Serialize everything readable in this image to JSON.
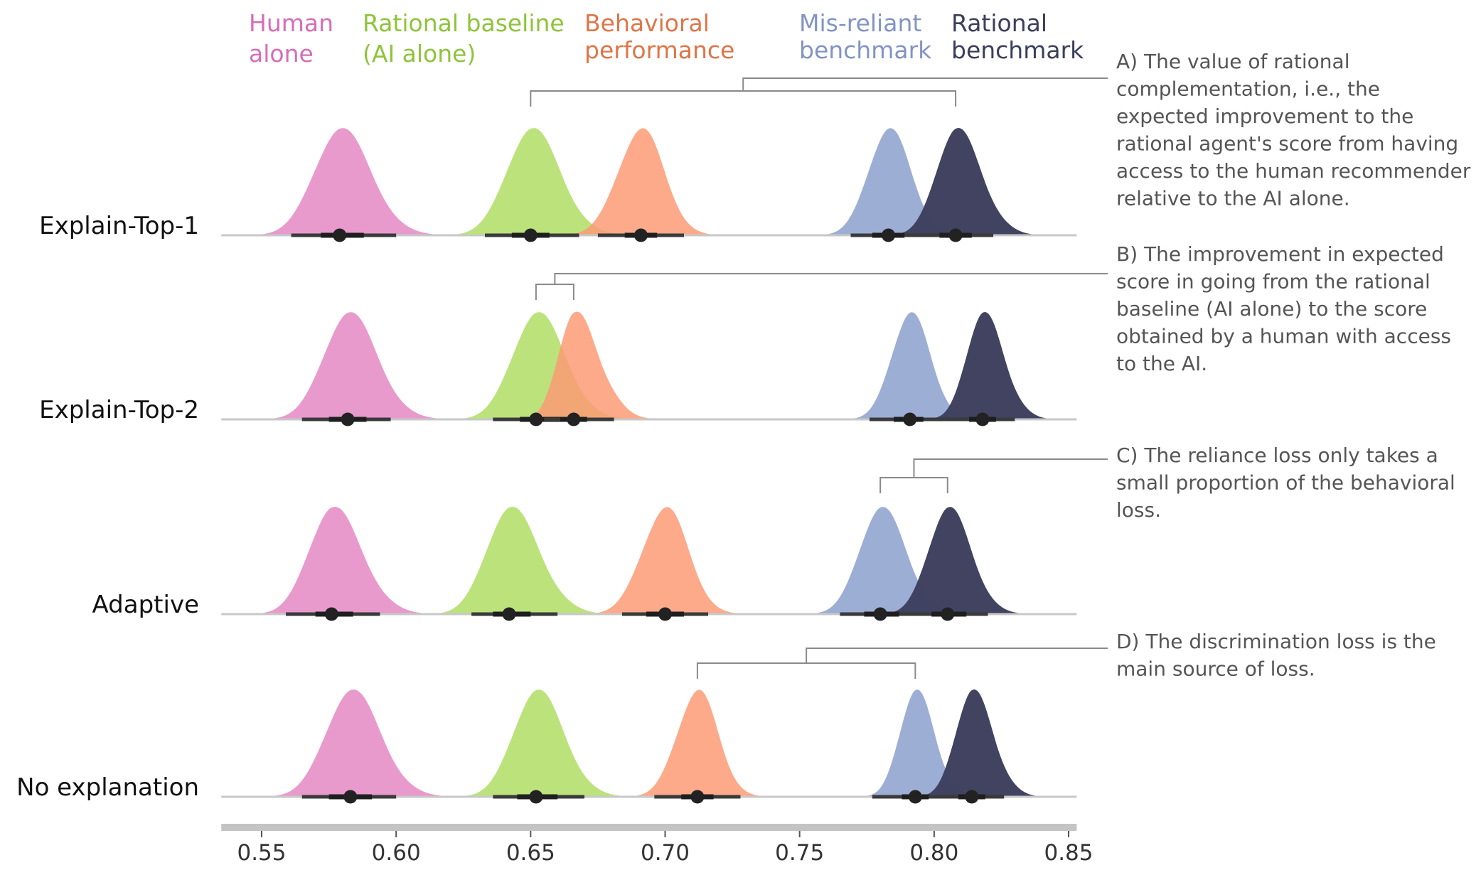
{
  "chart_data": {
    "type": "density",
    "title": "",
    "xlabel": "",
    "ylabel": "",
    "xlim": [
      0.535,
      0.853
    ],
    "x_ticks": [
      "0.55",
      "0.60",
      "0.65",
      "0.70",
      "0.75",
      "0.80",
      "0.85"
    ],
    "x_tick_values": [
      0.55,
      0.6,
      0.65,
      0.7,
      0.75,
      0.8,
      0.85
    ],
    "legend": [
      {
        "key": "human",
        "lines": [
          "Human",
          "alone"
        ],
        "color": "#d66db8"
      },
      {
        "key": "rational_baseline",
        "lines": [
          "Rational baseline",
          "(AI alone)"
        ],
        "color": "#8ec43a"
      },
      {
        "key": "behavioral",
        "lines": [
          "Behavioral",
          "performance"
        ],
        "color": "#e07548"
      },
      {
        "key": "misreliant",
        "lines": [
          "Mis-reliant",
          "benchmark"
        ],
        "color": "#8294c4"
      },
      {
        "key": "rational_benchmark",
        "lines": [
          "Rational",
          "benchmark"
        ],
        "color": "#3b3e5c"
      }
    ],
    "fill_colors": {
      "human": "#e99acd",
      "rational_baseline": "#b8e074",
      "behavioral": "#fc9b76",
      "misreliant": "#9daed5",
      "rational_benchmark": "#3d3f5e"
    },
    "fill_opacity": {
      "human": 1,
      "rational_baseline": 0.95,
      "behavioral": 0.85,
      "misreliant": 1,
      "rational_benchmark": 0.98
    },
    "rows": [
      {
        "label": "Explain-Top-1",
        "dists": [
          {
            "key": "human",
            "peak": 0.579,
            "sd": 0.0095,
            "skew": 1.2,
            "ci50": [
              0.572,
              0.588
            ],
            "ci95": [
              0.561,
              0.6
            ]
          },
          {
            "key": "rational_baseline",
            "peak": 0.65,
            "sd": 0.009,
            "skew": 1.2,
            "ci50": [
              0.643,
              0.657
            ],
            "ci95": [
              0.633,
              0.668
            ]
          },
          {
            "key": "behavioral",
            "peak": 0.691,
            "sd": 0.0085,
            "skew": 1.0,
            "ci50": [
              0.685,
              0.697
            ],
            "ci95": [
              0.675,
              0.707
            ]
          },
          {
            "key": "misreliant",
            "peak": 0.783,
            "sd": 0.0075,
            "skew": 1.1,
            "ci50": [
              0.777,
              0.789
            ],
            "ci95": [
              0.769,
              0.797
            ]
          },
          {
            "key": "rational_benchmark",
            "peak": 0.808,
            "sd": 0.0072,
            "skew": 1.3,
            "ci50": [
              0.802,
              0.814
            ],
            "ci95": [
              0.793,
              0.822
            ]
          }
        ]
      },
      {
        "label": "Explain-Top-2",
        "dists": [
          {
            "key": "human",
            "peak": 0.582,
            "sd": 0.009,
            "skew": 1.2,
            "ci50": [
              0.575,
              0.589
            ],
            "ci95": [
              0.565,
              0.598
            ]
          },
          {
            "key": "rational_baseline",
            "peak": 0.652,
            "sd": 0.0088,
            "skew": 1.2,
            "ci50": [
              0.646,
              0.661
            ],
            "ci95": [
              0.636,
              0.672
            ]
          },
          {
            "key": "behavioral",
            "peak": 0.666,
            "sd": 0.0058,
            "skew": 1.6,
            "ci50": [
              0.661,
              0.671
            ],
            "ci95": [
              0.655,
              0.681
            ]
          },
          {
            "key": "misreliant",
            "peak": 0.791,
            "sd": 0.0068,
            "skew": 1.1,
            "ci50": [
              0.785,
              0.796
            ],
            "ci95": [
              0.776,
              0.804
            ]
          },
          {
            "key": "rational_benchmark",
            "peak": 0.818,
            "sd": 0.006,
            "skew": 1.3,
            "ci50": [
              0.813,
              0.823
            ],
            "ci95": [
              0.804,
              0.83
            ]
          }
        ]
      },
      {
        "label": "Adaptive",
        "dists": [
          {
            "key": "human",
            "peak": 0.576,
            "sd": 0.0085,
            "skew": 1.3,
            "ci50": [
              0.57,
              0.584
            ],
            "ci95": [
              0.559,
              0.594
            ]
          },
          {
            "key": "rational_baseline",
            "peak": 0.642,
            "sd": 0.0085,
            "skew": 1.3,
            "ci50": [
              0.636,
              0.65
            ],
            "ci95": [
              0.628,
              0.66
            ]
          },
          {
            "key": "behavioral",
            "peak": 0.7,
            "sd": 0.0085,
            "skew": 1.0,
            "ci50": [
              0.693,
              0.707
            ],
            "ci95": [
              0.684,
              0.716
            ]
          },
          {
            "key": "misreliant",
            "peak": 0.78,
            "sd": 0.0078,
            "skew": 1.2,
            "ci50": [
              0.774,
              0.787
            ],
            "ci95": [
              0.765,
              0.797
            ]
          },
          {
            "key": "rational_benchmark",
            "peak": 0.805,
            "sd": 0.0072,
            "skew": 1.2,
            "ci50": [
              0.799,
              0.812
            ],
            "ci95": [
              0.79,
              0.82
            ]
          }
        ]
      },
      {
        "label": "No explanation",
        "dists": [
          {
            "key": "human",
            "peak": 0.583,
            "sd": 0.0092,
            "skew": 1.2,
            "ci50": [
              0.575,
              0.591
            ],
            "ci95": [
              0.565,
              0.6
            ]
          },
          {
            "key": "rational_baseline",
            "peak": 0.652,
            "sd": 0.0085,
            "skew": 1.2,
            "ci50": [
              0.645,
              0.66
            ],
            "ci95": [
              0.636,
              0.67
            ]
          },
          {
            "key": "behavioral",
            "peak": 0.712,
            "sd": 0.0075,
            "skew": 1.0,
            "ci50": [
              0.706,
              0.718
            ],
            "ci95": [
              0.696,
              0.728
            ]
          },
          {
            "key": "misreliant",
            "peak": 0.793,
            "sd": 0.0058,
            "skew": 1.2,
            "ci50": [
              0.788,
              0.798
            ],
            "ci95": [
              0.777,
              0.805
            ]
          },
          {
            "key": "rational_benchmark",
            "peak": 0.814,
            "sd": 0.006,
            "skew": 1.3,
            "ci50": [
              0.809,
              0.819
            ],
            "ci95": [
              0.799,
              0.826
            ]
          }
        ]
      }
    ],
    "annotations": [
      {
        "id": "A",
        "row": 0,
        "from": "rational_baseline",
        "to": "rational_benchmark",
        "lines": [
          "A) The value of rational",
          "complementation, i.e., the",
          "expected improvement to the",
          "rational agent's score from having",
          "access to the human recommender",
          "relative to the AI alone."
        ]
      },
      {
        "id": "B",
        "row": 1,
        "from": "rational_baseline",
        "to": "behavioral",
        "lines": [
          "B) The improvement in expected",
          "score in going from the rational",
          "baseline (AI alone) to the score",
          "obtained by a human with access",
          "to the AI."
        ]
      },
      {
        "id": "C",
        "row": 2,
        "from": "misreliant",
        "to": "rational_benchmark",
        "lines": [
          "C) The reliance loss only takes a",
          "small proportion of the behavioral",
          "loss."
        ]
      },
      {
        "id": "D",
        "row": 3,
        "from": "behavioral",
        "to": "misreliant",
        "lines": [
          "D) The discrimination loss is the",
          "main source of loss."
        ]
      }
    ]
  }
}
